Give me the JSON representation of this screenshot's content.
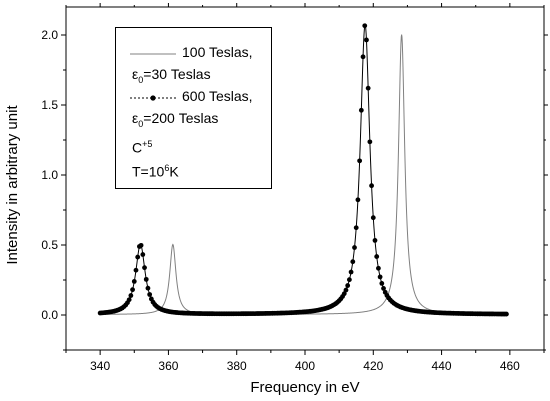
{
  "chart_data": {
    "type": "line",
    "xlabel": "Frequency in eV",
    "ylabel": "Intensity in arbitrary unit",
    "xlim": [
      330,
      470
    ],
    "ylim": [
      -0.25,
      2.2
    ],
    "xticks": [
      340,
      360,
      380,
      400,
      420,
      440,
      460
    ],
    "yticks": [
      0.0,
      0.5,
      1.0,
      1.5,
      2.0
    ],
    "xtick_labels": [
      "340",
      "360",
      "380",
      "400",
      "420",
      "440",
      "460"
    ],
    "ytick_labels": [
      "0.0",
      "0.5",
      "1.0",
      "1.5",
      "2.0"
    ],
    "legend_position": "top-left",
    "series": [
      {
        "name": "100 Teslas,",
        "sub_label": "ε0=30 Teslas",
        "style": "thin-line",
        "color": "#808080",
        "peaks": [
          {
            "center": 361.3,
            "height": 0.5,
            "hwhm": 1.1
          },
          {
            "center": 428.3,
            "height": 2.0,
            "hwhm": 1.1
          }
        ],
        "baseline": 0.003,
        "x_range": [
          340,
          459
        ]
      },
      {
        "name": "600 Teslas,",
        "sub_label": "ε0=200 Teslas",
        "style": "dot-line",
        "color": "#000000",
        "peaks": [
          {
            "center": 351.8,
            "height": 0.5,
            "hwhm": 1.7
          },
          {
            "center": 417.6,
            "height": 2.07,
            "hwhm": 1.7
          }
        ],
        "baseline": 0.003,
        "x_range": [
          340,
          459
        ],
        "marker_step": 0.5
      }
    ]
  },
  "legend": {
    "entry1_line1": "100 Teslas,",
    "entry1_eps": "ε",
    "entry1_sub": "0",
    "entry1_rest": "=30 Teslas",
    "entry2_line1": "600 Teslas,",
    "entry2_eps": "ε",
    "entry2_sub": "0",
    "entry2_rest": "=200 Teslas",
    "ion_base": "C",
    "ion_sup": "+5",
    "temp_base": "T=10",
    "temp_sup": "6",
    "temp_unit": "K"
  }
}
